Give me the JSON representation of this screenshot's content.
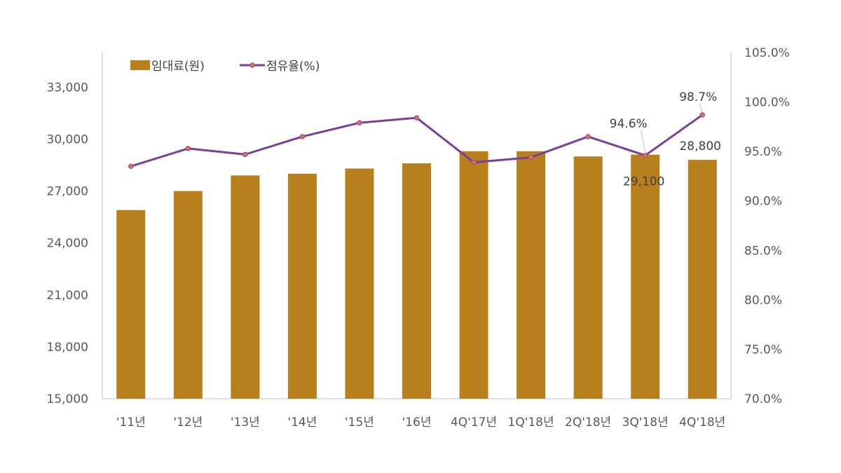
{
  "chart_data": {
    "type": "bar",
    "categories": [
      "'11년",
      "'12년",
      "'13년",
      "'14년",
      "'15년",
      "'16년",
      "4Q'17년",
      "1Q'18년",
      "2Q'18년",
      "3Q'18년",
      "4Q'18년"
    ],
    "series": [
      {
        "name": "임대료(원)",
        "type": "bar",
        "axis": "left",
        "color": "#B8801C",
        "values": [
          25900,
          27000,
          27900,
          28000,
          28300,
          28600,
          29300,
          29300,
          29000,
          29100,
          28800
        ]
      },
      {
        "name": "점유율(%)",
        "type": "line",
        "axis": "right",
        "color": "#7A3E9D",
        "marker_color": "#D9735C",
        "values": [
          93.5,
          95.3,
          94.7,
          96.5,
          97.9,
          98.4,
          93.9,
          94.4,
          96.5,
          94.6,
          98.7
        ]
      }
    ],
    "ylim_left": [
      15000,
      35000
    ],
    "ylim_right": [
      70.0,
      105.0
    ],
    "yticks_left": [
      "15,000",
      "18,000",
      "21,000",
      "24,000",
      "27,000",
      "30,000",
      "33,000"
    ],
    "yticks_right": [
      "70.0%",
      "75.0%",
      "80.0%",
      "85.0%",
      "90.0%",
      "95.0%",
      "100.0%",
      "105.0%"
    ],
    "data_labels": [
      {
        "series": "임대료(원)",
        "index": 9,
        "text": "29,100"
      },
      {
        "series": "임대료(원)",
        "index": 10,
        "text": "28,800"
      },
      {
        "series": "점유율(%)",
        "index": 9,
        "text": "94.6%"
      },
      {
        "series": "점유율(%)",
        "index": 10,
        "text": "98.7%"
      }
    ],
    "legend": {
      "position": "top-left",
      "items": [
        "임대료(원)",
        "점유율(%)"
      ]
    },
    "grid": false
  }
}
